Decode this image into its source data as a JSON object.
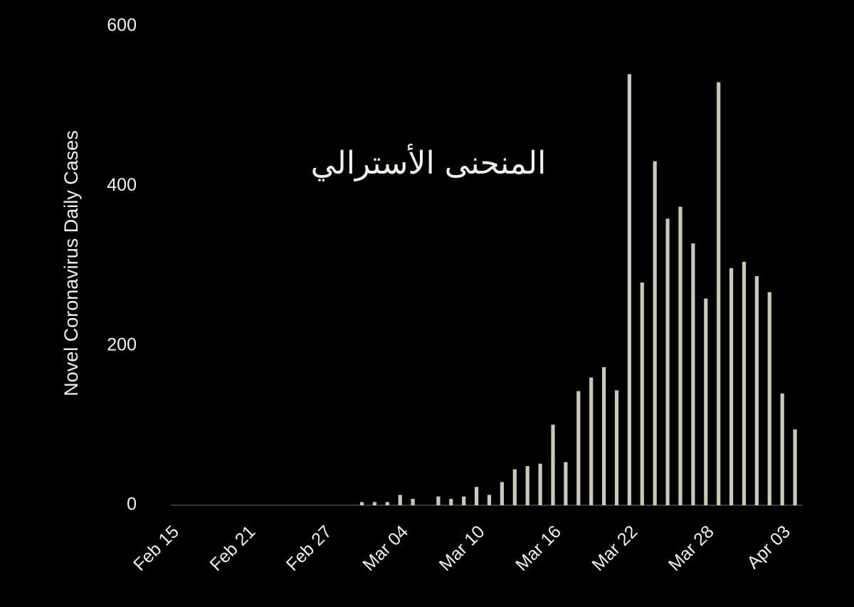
{
  "chart_data": {
    "type": "bar",
    "y_label": "Novel Coronavirus Daily Cases",
    "annotation": "المنحنى الأسترالي",
    "categories": [
      "Feb 15",
      null,
      null,
      null,
      null,
      null,
      "Feb 21",
      null,
      null,
      null,
      null,
      null,
      "Feb 27",
      null,
      null,
      null,
      null,
      null,
      "Mar 04",
      null,
      null,
      null,
      null,
      null,
      "Mar 10",
      null,
      null,
      null,
      null,
      null,
      "Mar 16",
      null,
      null,
      null,
      null,
      null,
      "Mar 22",
      null,
      null,
      null,
      null,
      null,
      "Mar 28",
      null,
      null,
      null,
      null,
      null,
      "Apr 03",
      null
    ],
    "values": [
      0,
      0,
      0,
      0,
      0,
      0,
      0,
      0,
      0,
      0,
      0,
      0,
      0,
      0,
      0,
      4,
      4,
      4,
      13,
      8,
      0,
      11,
      8,
      11,
      23,
      13,
      29,
      45,
      49,
      52,
      101,
      54,
      143,
      160,
      173,
      144,
      540,
      279,
      431,
      359,
      374,
      328,
      259,
      530,
      297,
      305,
      287,
      267,
      140,
      95
    ],
    "color": "#c9c9b6",
    "ylim": [
      0,
      600
    ],
    "yticks": [
      0,
      200,
      400,
      600
    ]
  }
}
